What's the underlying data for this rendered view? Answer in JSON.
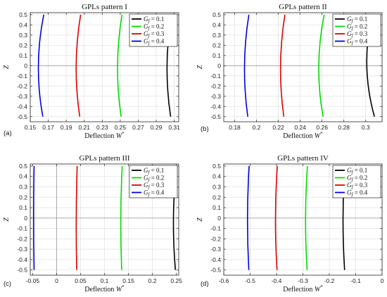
{
  "chart_data": [
    {
      "type": "line",
      "panel_label": "(a)",
      "title": "GPLs pattern I",
      "xlabel": "Deflection W*",
      "ylabel": "Z",
      "xlim": [
        0.15,
        0.315
      ],
      "ylim": [
        -0.55,
        0.52
      ],
      "xticks": [
        0.15,
        0.17,
        0.19,
        0.21,
        0.23,
        0.25,
        0.27,
        0.29,
        0.31
      ],
      "xticklabels": [
        "0.15",
        "0.17",
        "0.19",
        "0.21",
        "0.23",
        "0.25",
        "0.27",
        "0.29",
        "0.31"
      ],
      "yticks": [
        -0.5,
        -0.4,
        -0.3,
        -0.2,
        -0.1,
        0,
        0.1,
        0.2,
        0.3,
        0.4,
        0.5
      ],
      "yticklabels": [
        "-0.5",
        "-0.4",
        "-0.3",
        "-0.2",
        "-0.1",
        "0",
        "0.1",
        "0.2",
        "0.3",
        "0.4",
        "0.5"
      ],
      "legend_position": "top-right",
      "series": [
        {
          "name": "G_f = 0.1",
          "color": "#000000",
          "z": [
            -0.5,
            0,
            0.5
          ],
          "w": [
            0.306,
            0.302,
            0.307
          ]
        },
        {
          "name": "G_f = 0.2",
          "color": "#00dd00",
          "z": [
            -0.5,
            0,
            0.5
          ],
          "w": [
            0.251,
            0.247,
            0.252
          ]
        },
        {
          "name": "G_f = 0.3",
          "color": "#dd0000",
          "z": [
            -0.5,
            0,
            0.5
          ],
          "w": [
            0.205,
            0.201,
            0.206
          ]
        },
        {
          "name": "G_f = 0.4",
          "color": "#0000dd",
          "z": [
            -0.5,
            0,
            0.5
          ],
          "w": [
            0.164,
            0.159,
            0.165
          ]
        }
      ]
    },
    {
      "type": "line",
      "panel_label": "(b)",
      "title": "GPLs pattern II",
      "xlabel": "Deflection W*",
      "ylabel": "Z",
      "xlim": [
        0.17,
        0.315
      ],
      "ylim": [
        -0.55,
        0.52
      ],
      "xticks": [
        0.18,
        0.2,
        0.22,
        0.24,
        0.26,
        0.28,
        0.3
      ],
      "xticklabels": [
        "0.18",
        "0.2",
        "0.22",
        "0.24",
        "0.26",
        "0.28",
        "0.3"
      ],
      "yticks": [
        -0.5,
        -0.4,
        -0.3,
        -0.2,
        -0.1,
        0,
        0.1,
        0.2,
        0.3,
        0.4,
        0.5
      ],
      "yticklabels": [
        "-0.5",
        "-0.4",
        "-0.3",
        "-0.2",
        "-0.1",
        "0",
        "0.1",
        "0.2",
        "0.3",
        "0.4",
        "0.5"
      ],
      "legend_position": "top-right",
      "series": [
        {
          "name": "G_f = 0.1",
          "color": "#000000",
          "z": [
            -0.5,
            0,
            0.5
          ],
          "w": [
            0.308,
            0.301,
            0.306
          ]
        },
        {
          "name": "G_f = 0.2",
          "color": "#00dd00",
          "z": [
            -0.5,
            0,
            0.5
          ],
          "w": [
            0.261,
            0.257,
            0.262
          ]
        },
        {
          "name": "G_f = 0.3",
          "color": "#dd0000",
          "z": [
            -0.5,
            0,
            0.5
          ],
          "w": [
            0.225,
            0.222,
            0.226
          ]
        },
        {
          "name": "G_f = 0.4",
          "color": "#0000dd",
          "z": [
            -0.5,
            0,
            0.5
          ],
          "w": [
            0.192,
            0.189,
            0.193
          ]
        }
      ]
    },
    {
      "type": "line",
      "panel_label": "(c)",
      "title": "GPLs pattern III",
      "xlabel": "Deflection W*",
      "ylabel": "Z",
      "xlim": [
        -0.055,
        0.255
      ],
      "ylim": [
        -0.55,
        0.52
      ],
      "xticks": [
        -0.05,
        0,
        0.05,
        0.1,
        0.15,
        0.2,
        0.25
      ],
      "xticklabels": [
        "-0.05",
        "0",
        "0.05",
        "0.1",
        "0.15",
        "0.2",
        "0.25"
      ],
      "yticks": [
        -0.5,
        -0.4,
        -0.3,
        -0.2,
        -0.1,
        0,
        0.1,
        0.2,
        0.3,
        0.4,
        0.5
      ],
      "yticklabels": [
        "-0.5",
        "-0.4",
        "-0.3",
        "-0.2",
        "-0.1",
        "0",
        "0.1",
        "0.2",
        "0.3",
        "0.4",
        "0.5"
      ],
      "legend_position": "top-right",
      "series": [
        {
          "name": "G_f = 0.1",
          "color": "#000000",
          "z": [
            -0.5,
            0,
            0.5
          ],
          "w": [
            0.248,
            0.244,
            0.25
          ]
        },
        {
          "name": "G_f = 0.2",
          "color": "#00dd00",
          "z": [
            -0.5,
            0,
            0.5
          ],
          "w": [
            0.136,
            0.134,
            0.137
          ]
        },
        {
          "name": "G_f = 0.3",
          "color": "#dd0000",
          "z": [
            -0.5,
            0,
            0.5
          ],
          "w": [
            0.042,
            0.041,
            0.043
          ]
        },
        {
          "name": "G_f = 0.4",
          "color": "#0000dd",
          "z": [
            -0.5,
            0,
            0.5
          ],
          "w": [
            -0.047,
            -0.048,
            -0.047
          ]
        }
      ]
    },
    {
      "type": "line",
      "panel_label": "(d)",
      "title": "GPLs pattern IV",
      "xlabel": "Deflection W*",
      "ylabel": "Z",
      "xlim": [
        -0.6,
        0
      ],
      "ylim": [
        -0.55,
        0.52
      ],
      "xticks": [
        -0.6,
        -0.5,
        -0.4,
        -0.3,
        -0.2,
        -0.1,
        0
      ],
      "xticklabels": [
        "-0.6",
        "-0.5",
        "-0.4",
        "-0.3",
        "-0.2",
        "-0.1",
        "0"
      ],
      "yticks": [
        -0.5,
        -0.4,
        -0.3,
        -0.2,
        -0.1,
        0,
        0.1,
        0.2,
        0.3,
        0.4,
        0.5
      ],
      "yticklabels": [
        "-0.5",
        "-0.4",
        "-0.3",
        "-0.2",
        "-0.1",
        "0",
        "0.1",
        "0.2",
        "0.3",
        "0.4",
        "0.5"
      ],
      "legend_position": "top-right",
      "series": [
        {
          "name": "G_f = 0.1",
          "color": "#000000",
          "z": [
            -0.5,
            0,
            0.5
          ],
          "w": [
            -0.142,
            -0.148,
            -0.141
          ]
        },
        {
          "name": "G_f = 0.2",
          "color": "#00dd00",
          "z": [
            -0.5,
            0,
            0.5
          ],
          "w": [
            -0.284,
            -0.29,
            -0.283
          ]
        },
        {
          "name": "G_f = 0.3",
          "color": "#dd0000",
          "z": [
            -0.5,
            0,
            0.5
          ],
          "w": [
            -0.398,
            -0.404,
            -0.397
          ]
        },
        {
          "name": "G_f = 0.4",
          "color": "#0000dd",
          "z": [
            -0.5,
            0,
            0.5
          ],
          "w": [
            -0.505,
            -0.51,
            -0.504
          ]
        }
      ]
    }
  ]
}
